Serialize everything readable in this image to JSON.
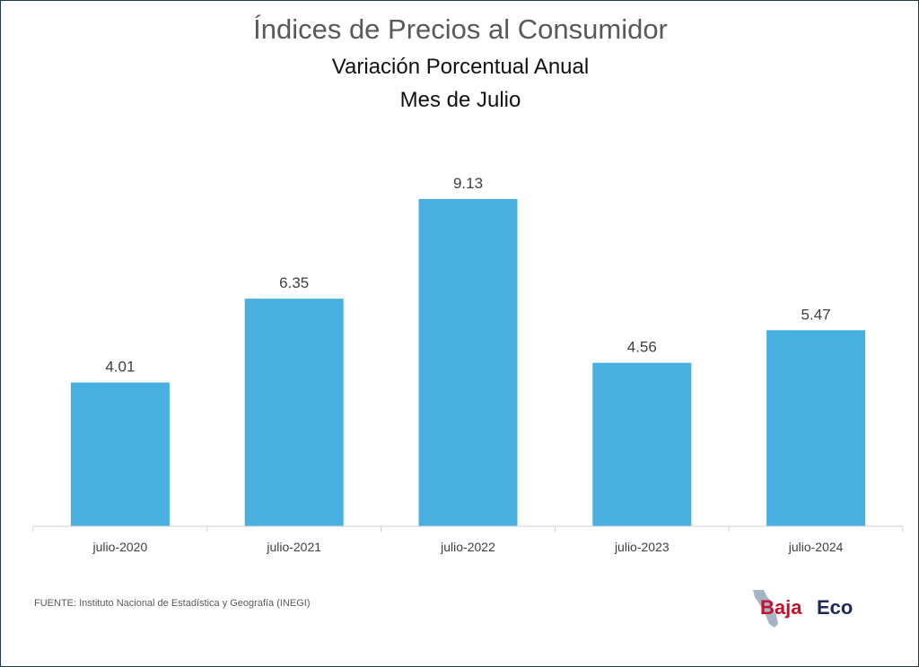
{
  "header": {
    "title": "Índices de Precios al Consumidor",
    "subtitle1": "Variación Porcentual Anual",
    "subtitle2": "Mes de Julio"
  },
  "footer": {
    "source": "FUENTE: Instituto Nacional de Estadística y Geografía (INEGI)"
  },
  "logo": {
    "text_part1": "Baja",
    "text_part2": "Eco",
    "colors": {
      "part1": "#c8102e",
      "part2": "#1c2a55",
      "shape": "#8fa3b8"
    }
  },
  "colors": {
    "bar": "#47b0e0",
    "axis": "#d0d0d0",
    "label": "#404040"
  },
  "chart_data": {
    "type": "bar",
    "categories": [
      "julio-2020",
      "julio-2021",
      "julio-2022",
      "julio-2023",
      "julio-2024"
    ],
    "values": [
      4.01,
      6.35,
      9.13,
      4.56,
      5.47
    ],
    "data_labels": [
      "4.01",
      "6.35",
      "9.13",
      "4.56",
      "5.47"
    ],
    "title": "Índices de Precios al Consumidor",
    "subtitle": "Variación Porcentual Anual — Mes de Julio",
    "ylim": [
      0,
      10
    ],
    "grid": false,
    "legend": "none"
  }
}
